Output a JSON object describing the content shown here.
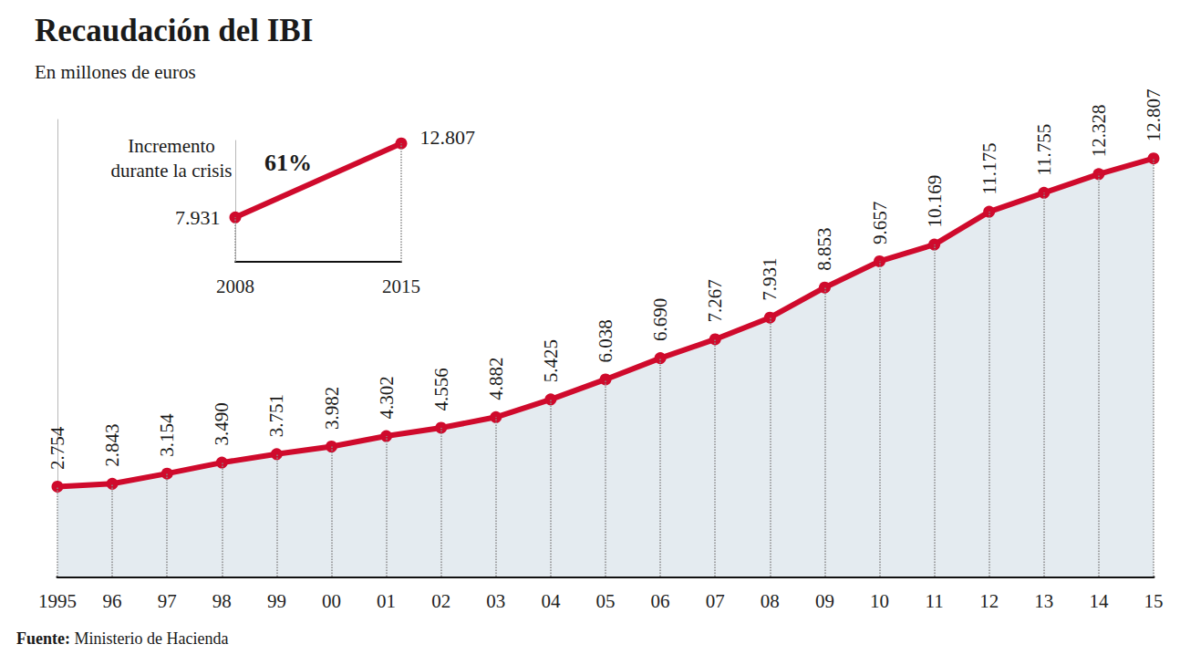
{
  "chart_data": [
    {
      "type": "area",
      "title": "Recaudación del IBI",
      "subtitle": "En millones de euros",
      "source": "Fuente: Ministerio de Hacienda",
      "categories": [
        "1995",
        "96",
        "97",
        "98",
        "99",
        "00",
        "01",
        "02",
        "03",
        "04",
        "05",
        "06",
        "07",
        "08",
        "09",
        "10",
        "11",
        "12",
        "13",
        "14",
        "15"
      ],
      "values": [
        2754,
        2843,
        3154,
        3490,
        3751,
        3982,
        4302,
        4556,
        4882,
        5425,
        6038,
        6690,
        7267,
        7931,
        8853,
        9657,
        10169,
        11175,
        11755,
        12328,
        12807
      ],
      "value_labels": [
        "2.754",
        "2.843",
        "3.154",
        "3.490",
        "3.751",
        "3.982",
        "4.302",
        "4.556",
        "4.882",
        "5.425",
        "6.038",
        "6.690",
        "7.267",
        "7.931",
        "8.853",
        "9.657",
        "10.169",
        "11.175",
        "11.755",
        "12.328",
        "12.807"
      ],
      "color": "#cf0a2c",
      "marker": "circle",
      "ylim": [
        0,
        14000
      ],
      "yticks": [],
      "grid": false,
      "data_labels": true,
      "tick_labels": "x"
    },
    {
      "type": "line",
      "categories": [
        "2008",
        "2015"
      ],
      "values": [
        7931,
        12807
      ],
      "value_labels": [
        "7.931",
        "12.807"
      ],
      "annotations": [
        "Incremento\ndurante la crisis",
        "61%"
      ],
      "color": "#cf0a2c",
      "marker": "circle",
      "ylim": [
        5000,
        13000
      ],
      "yticks": [],
      "grid": false,
      "data_labels": true,
      "tick_labels": "x"
    }
  ]
}
